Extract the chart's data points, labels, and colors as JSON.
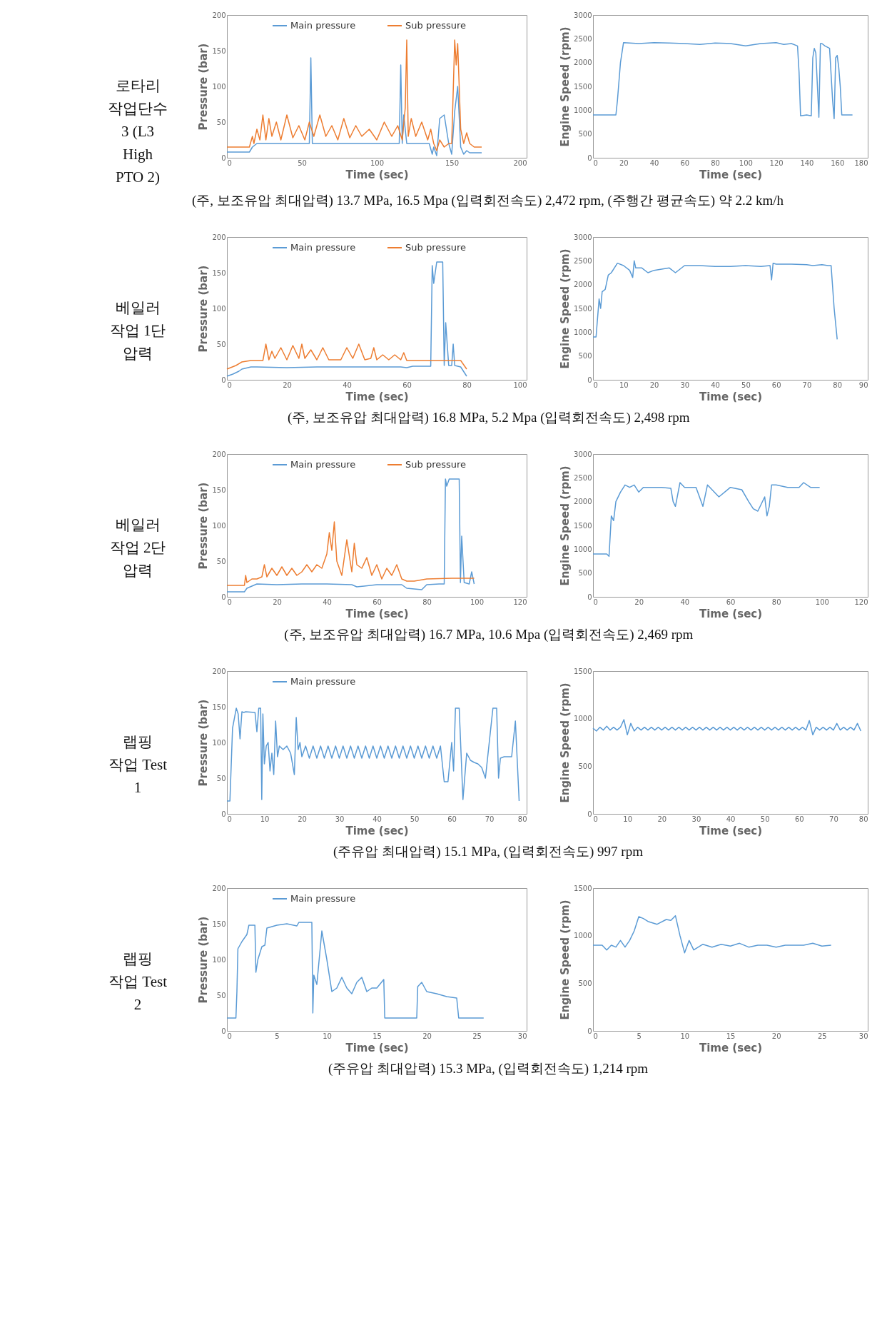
{
  "chart_data": [
    {
      "type": "line",
      "xlabel": "Time (sec)",
      "ylabel": "Pressure (bar)",
      "xlim": [
        0,
        200
      ],
      "xticks": [
        0,
        50,
        100,
        150,
        200
      ],
      "ylim": [
        0,
        200
      ],
      "yticks": [
        0,
        50,
        100,
        150,
        200
      ],
      "legend": "top",
      "annotations": [
        "로타리\n작업단수\n3 (L3\nHigh\nPTO 2)"
      ],
      "series": [
        {
          "name": "Main pressure",
          "color": "#5b9bd5",
          "x": [
            0,
            15,
            17,
            20,
            40,
            55,
            56,
            57,
            60,
            80,
            100,
            115,
            116,
            117,
            118,
            120,
            135,
            137,
            138,
            140,
            142,
            145,
            148,
            150,
            152,
            154,
            156,
            158,
            160,
            162,
            170
          ],
          "values": [
            8,
            8,
            15,
            20,
            20,
            20,
            140,
            20,
            20,
            20,
            20,
            20,
            130,
            20,
            60,
            20,
            20,
            5,
            15,
            3,
            55,
            60,
            20,
            5,
            65,
            100,
            15,
            5,
            10,
            7,
            7
          ]
        },
        {
          "name": "Sub pressure",
          "color": "#ed7d31",
          "x": [
            0,
            15,
            17,
            18,
            20,
            22,
            24,
            26,
            28,
            30,
            33,
            36,
            40,
            44,
            48,
            52,
            55,
            58,
            62,
            66,
            70,
            74,
            78,
            82,
            86,
            90,
            95,
            100,
            105,
            110,
            114,
            117,
            119,
            120,
            121,
            123,
            126,
            130,
            134,
            136,
            138,
            140,
            142,
            145,
            148,
            150,
            152,
            153,
            154,
            155,
            156,
            158,
            160,
            162,
            165,
            170
          ],
          "values": [
            15,
            15,
            30,
            20,
            40,
            25,
            60,
            25,
            55,
            30,
            50,
            25,
            60,
            28,
            45,
            25,
            50,
            30,
            60,
            30,
            45,
            25,
            55,
            28,
            45,
            30,
            40,
            25,
            50,
            30,
            45,
            25,
            70,
            165,
            30,
            55,
            30,
            50,
            25,
            40,
            20,
            10,
            25,
            15,
            20,
            20,
            165,
            130,
            160,
            100,
            40,
            20,
            35,
            20,
            15,
            15
          ]
        }
      ]
    },
    {
      "type": "line",
      "xlabel": "Time (sec)",
      "ylabel": "Engine Speed (rpm)",
      "xlim": [
        0,
        180
      ],
      "xticks": [
        0,
        20,
        40,
        60,
        80,
        100,
        120,
        140,
        160,
        180
      ],
      "ylim": [
        0,
        3000
      ],
      "yticks": [
        0,
        500,
        1000,
        1500,
        2000,
        2500,
        3000
      ],
      "annotations": [
        "(주, 보조유압 최대압력) 13.7 MPa, 16.5 Mpa (입력회전속도) 2,472 rpm, (주행간 평균속도) 약 2.2 km/h"
      ],
      "series": [
        {
          "color": "#5b9bd5",
          "x": [
            0,
            15,
            16,
            18,
            20,
            30,
            40,
            50,
            60,
            70,
            80,
            90,
            100,
            110,
            120,
            125,
            130,
            134,
            135,
            136,
            140,
            143,
            144,
            145,
            146,
            148,
            149,
            150,
            152,
            155,
            157,
            158,
            159,
            160,
            161,
            162,
            163,
            165,
            170
          ],
          "values": [
            900,
            900,
            1200,
            2000,
            2420,
            2400,
            2420,
            2410,
            2400,
            2380,
            2410,
            2400,
            2350,
            2400,
            2420,
            2380,
            2400,
            2350,
            1800,
            880,
            900,
            880,
            2100,
            2300,
            2200,
            850,
            2400,
            2400,
            2350,
            2300,
            1200,
            820,
            2100,
            2150,
            1900,
            1500,
            900,
            900,
            900
          ]
        }
      ]
    },
    {
      "type": "line",
      "xlabel": "Time (sec)",
      "ylabel": "Pressure (bar)",
      "xlim": [
        0,
        100
      ],
      "xticks": [
        0,
        20,
        40,
        60,
        80,
        100
      ],
      "ylim": [
        0,
        200
      ],
      "yticks": [
        0,
        50,
        100,
        150,
        200
      ],
      "legend": "top",
      "annotations": [
        "베일러\n작업 1단\n압력"
      ],
      "series": [
        {
          "name": "Main pressure",
          "color": "#5b9bd5",
          "x": [
            0,
            2,
            3,
            4,
            5,
            8,
            10,
            20,
            30,
            40,
            50,
            58,
            60,
            62,
            68,
            68.5,
            69,
            70,
            72,
            72.5,
            73,
            74,
            75,
            75.5,
            76,
            78,
            80
          ],
          "values": [
            5,
            8,
            10,
            12,
            15,
            18,
            18,
            17,
            18,
            18,
            18,
            18,
            17,
            19,
            19,
            160,
            135,
            165,
            165,
            20,
            80,
            20,
            20,
            50,
            20,
            18,
            5
          ]
        },
        {
          "name": "Sub pressure",
          "color": "#ed7d31",
          "x": [
            0,
            3,
            5,
            8,
            10,
            12,
            13,
            14,
            15,
            16,
            18,
            20,
            22,
            24,
            25,
            26,
            28,
            30,
            32,
            34,
            36,
            38,
            40,
            42,
            44,
            46,
            48,
            49,
            50,
            52,
            54,
            56,
            58,
            59,
            60,
            65,
            70,
            78,
            80
          ],
          "values": [
            15,
            20,
            25,
            27,
            27,
            27,
            50,
            28,
            40,
            30,
            45,
            28,
            48,
            30,
            50,
            30,
            42,
            28,
            45,
            28,
            28,
            28,
            45,
            30,
            50,
            28,
            30,
            45,
            28,
            35,
            28,
            35,
            28,
            38,
            27,
            27,
            27,
            27,
            15
          ]
        }
      ]
    },
    {
      "type": "line",
      "xlabel": "Time (sec)",
      "ylabel": "Engine Speed (rpm)",
      "xlim": [
        0,
        90
      ],
      "xticks": [
        0,
        10,
        20,
        30,
        40,
        50,
        60,
        70,
        80,
        90
      ],
      "ylim": [
        0,
        3000
      ],
      "yticks": [
        0,
        500,
        1000,
        1500,
        2000,
        2500,
        3000
      ],
      "annotations": [
        "(주, 보조유압 최대압력) 16.8 MPa, 5.2 Mpa (입력회전속도) 2,498 rpm"
      ],
      "series": [
        {
          "color": "#5b9bd5",
          "x": [
            0,
            1,
            2,
            2.5,
            3,
            4,
            5,
            6,
            8,
            10,
            12,
            13,
            13.5,
            14,
            16,
            18,
            20,
            25,
            27,
            30,
            35,
            40,
            45,
            50,
            55,
            58,
            58.5,
            59,
            60,
            65,
            70,
            72,
            75,
            77,
            78,
            79,
            80
          ],
          "values": [
            900,
            900,
            1700,
            1500,
            1850,
            1900,
            2200,
            2250,
            2450,
            2400,
            2300,
            2150,
            2500,
            2350,
            2350,
            2250,
            2300,
            2350,
            2250,
            2400,
            2400,
            2380,
            2380,
            2400,
            2380,
            2400,
            2100,
            2450,
            2430,
            2430,
            2420,
            2400,
            2420,
            2400,
            2400,
            1500,
            850
          ]
        }
      ]
    },
    {
      "type": "line",
      "xlabel": "Time (sec)",
      "ylabel": "Pressure (bar)",
      "xlim": [
        0,
        120
      ],
      "xticks": [
        0,
        20,
        40,
        60,
        80,
        100,
        120
      ],
      "ylim": [
        0,
        200
      ],
      "yticks": [
        0,
        50,
        100,
        150,
        200
      ],
      "legend": "top",
      "annotations": [
        "베일러\n작업 2단\n압력"
      ],
      "series": [
        {
          "name": "Main pressure",
          "color": "#5b9bd5",
          "x": [
            0,
            7,
            8,
            10,
            12,
            20,
            30,
            40,
            50,
            52,
            60,
            70,
            72,
            78,
            80,
            85,
            87,
            87.5,
            88,
            89,
            90,
            93,
            93.5,
            94,
            95,
            97,
            98,
            99
          ],
          "values": [
            7,
            7,
            12,
            15,
            18,
            17,
            18,
            18,
            17,
            14,
            17,
            17,
            12,
            10,
            17,
            18,
            18,
            165,
            155,
            165,
            165,
            165,
            20,
            85,
            20,
            18,
            35,
            18
          ]
        },
        {
          "name": "Sub pressure",
          "color": "#ed7d31",
          "x": [
            0,
            7,
            7.5,
            8,
            10,
            12,
            14,
            15,
            16,
            18,
            20,
            22,
            24,
            26,
            28,
            30,
            32,
            34,
            36,
            38,
            40,
            41,
            42,
            43,
            44,
            45,
            46,
            48,
            50,
            51,
            52,
            54,
            56,
            58,
            60,
            62,
            64,
            66,
            68,
            70,
            72,
            75,
            80,
            90,
            99
          ],
          "values": [
            16,
            16,
            30,
            20,
            25,
            25,
            28,
            45,
            28,
            40,
            30,
            42,
            30,
            40,
            30,
            35,
            45,
            35,
            45,
            40,
            60,
            90,
            65,
            105,
            50,
            40,
            30,
            80,
            35,
            75,
            45,
            40,
            55,
            30,
            45,
            25,
            40,
            30,
            45,
            25,
            22,
            22,
            25,
            26,
            26
          ]
        }
      ]
    },
    {
      "type": "line",
      "xlabel": "Time (sec)",
      "ylabel": "Engine Speed (rpm)",
      "xlim": [
        0,
        120
      ],
      "xticks": [
        0,
        20,
        40,
        60,
        80,
        100,
        120
      ],
      "ylim": [
        0,
        3000
      ],
      "yticks": [
        0,
        500,
        1000,
        1500,
        2000,
        2500,
        3000
      ],
      "annotations": [
        "(주, 보조유압 최대압력) 16.7 MPa, 10.6 Mpa (입력회전속도) 2,469 rpm"
      ],
      "series": [
        {
          "color": "#5b9bd5",
          "x": [
            0,
            6,
            7,
            8,
            9,
            10,
            12,
            14,
            16,
            18,
            20,
            22,
            25,
            30,
            34,
            35,
            36,
            38,
            40,
            45,
            48,
            50,
            55,
            60,
            65,
            68,
            70,
            72,
            75,
            76,
            77,
            78,
            80,
            85,
            90,
            92,
            95,
            99
          ],
          "values": [
            900,
            900,
            850,
            1700,
            1600,
            2000,
            2200,
            2350,
            2300,
            2350,
            2200,
            2300,
            2300,
            2300,
            2280,
            2000,
            1900,
            2400,
            2300,
            2300,
            1900,
            2350,
            2100,
            2300,
            2250,
            2000,
            1850,
            1800,
            2100,
            1700,
            1900,
            2350,
            2350,
            2300,
            2300,
            2400,
            2300,
            2300
          ]
        }
      ]
    },
    {
      "type": "line",
      "xlabel": "Time (sec)",
      "ylabel": "Pressure (bar)",
      "xlim": [
        0,
        80
      ],
      "xticks": [
        0,
        10,
        20,
        30,
        40,
        50,
        60,
        70,
        80
      ],
      "ylim": [
        0,
        200
      ],
      "yticks": [
        0,
        50,
        100,
        150,
        200
      ],
      "legend": "top",
      "annotations": [
        "랩핑\n작업 Test\n1"
      ],
      "series": [
        {
          "name": "Main pressure",
          "color": "#5b9bd5",
          "x": [
            0,
            0.8,
            1.5,
            2.5,
            3,
            3.5,
            4,
            4.5,
            5,
            7.5,
            8,
            8.5,
            9,
            9.3,
            9.6,
            10,
            10.5,
            11,
            11.5,
            12,
            12.5,
            13,
            13.5,
            14,
            15,
            16,
            17,
            18,
            18.5,
            19,
            19.5,
            20,
            21,
            22,
            23,
            24,
            25,
            26,
            27,
            28,
            29,
            30,
            31,
            32,
            33,
            34,
            35,
            36,
            37,
            38,
            39,
            40,
            41,
            42,
            43,
            44,
            45,
            46,
            47,
            48,
            49,
            50,
            51,
            52,
            53,
            54,
            55,
            56,
            57,
            58,
            59,
            60,
            60.5,
            61,
            62,
            63,
            64,
            65,
            66,
            67,
            68,
            69,
            71,
            72,
            72.5,
            73,
            74,
            76,
            77,
            78
          ],
          "values": [
            18,
            18,
            120,
            148,
            140,
            105,
            143,
            142,
            143,
            142,
            115,
            148,
            148,
            20,
            140,
            70,
            95,
            100,
            60,
            85,
            55,
            130,
            80,
            95,
            90,
            95,
            85,
            55,
            135,
            90,
            100,
            80,
            95,
            78,
            95,
            78,
            95,
            78,
            95,
            78,
            95,
            78,
            95,
            78,
            95,
            78,
            95,
            78,
            95,
            78,
            95,
            78,
            95,
            78,
            95,
            78,
            95,
            78,
            95,
            78,
            95,
            78,
            95,
            78,
            95,
            78,
            95,
            78,
            95,
            45,
            45,
            100,
            60,
            148,
            148,
            20,
            85,
            75,
            72,
            70,
            65,
            50,
            148,
            148,
            50,
            78,
            80,
            80,
            130,
            18
          ]
        }
      ]
    },
    {
      "type": "line",
      "xlabel": "Time (sec)",
      "ylabel": "Engine Speed (rpm)",
      "xlim": [
        0,
        80
      ],
      "xticks": [
        0,
        10,
        20,
        30,
        40,
        50,
        60,
        70,
        80
      ],
      "ylim": [
        0,
        1500
      ],
      "yticks": [
        0,
        500,
        1000,
        1500
      ],
      "annotations": [
        "(주유압 최대압력) 15.1 MPa, (입력회전속도) 997 rpm"
      ],
      "series": [
        {
          "color": "#5b9bd5",
          "x": [
            0,
            1,
            2,
            3,
            4,
            5,
            6,
            7,
            8,
            9,
            10,
            11,
            12,
            13,
            14,
            15,
            16,
            17,
            18,
            19,
            20,
            21,
            22,
            23,
            24,
            25,
            26,
            27,
            28,
            29,
            30,
            31,
            32,
            33,
            34,
            35,
            36,
            37,
            38,
            39,
            40,
            41,
            42,
            43,
            44,
            45,
            46,
            47,
            48,
            49,
            50,
            51,
            52,
            53,
            54,
            55,
            56,
            57,
            58,
            59,
            60,
            61,
            62,
            63,
            64,
            65,
            66,
            67,
            68,
            69,
            70,
            71,
            72,
            73,
            74,
            75,
            76,
            77,
            78
          ],
          "values": [
            900,
            870,
            910,
            880,
            920,
            880,
            910,
            880,
            910,
            990,
            830,
            950,
            870,
            910,
            880,
            910,
            880,
            910,
            880,
            910,
            880,
            910,
            880,
            910,
            880,
            910,
            880,
            910,
            880,
            910,
            880,
            910,
            880,
            910,
            880,
            910,
            880,
            910,
            880,
            910,
            880,
            910,
            880,
            910,
            880,
            910,
            880,
            910,
            880,
            910,
            880,
            910,
            880,
            910,
            880,
            910,
            880,
            910,
            880,
            910,
            880,
            910,
            880,
            980,
            830,
            910,
            880,
            910,
            880,
            910,
            880,
            950,
            880,
            910,
            880,
            910,
            880,
            950,
            870
          ]
        }
      ]
    },
    {
      "type": "line",
      "xlabel": "Time (sec)",
      "ylabel": "Pressure (bar)",
      "xlim": [
        0,
        30
      ],
      "xticks": [
        0,
        5,
        10,
        15,
        20,
        25,
        30
      ],
      "ylim": [
        0,
        200
      ],
      "yticks": [
        0,
        50,
        100,
        150,
        200
      ],
      "legend": "top",
      "annotations": [
        "랩핑\n작업 Test\n2"
      ],
      "series": [
        {
          "name": "Main pressure",
          "color": "#5b9bd5",
          "x": [
            0,
            0.9,
            1,
            1.1,
            1.5,
            2,
            2.2,
            2.8,
            2.9,
            3.1,
            3.5,
            3.8,
            4,
            5,
            6,
            7,
            7.2,
            8.5,
            8.6,
            8.7,
            9,
            9.5,
            10,
            10.5,
            11,
            11.5,
            12,
            12.5,
            13,
            13.5,
            14,
            14.5,
            15,
            15.7,
            15.8,
            17,
            19,
            19.1,
            19.5,
            20,
            21,
            22,
            23,
            23.2,
            24,
            25,
            25.7
          ],
          "values": [
            18,
            18,
            55,
            115,
            125,
            135,
            148,
            148,
            82,
            100,
            118,
            120,
            144,
            148,
            150,
            147,
            152,
            152,
            25,
            78,
            65,
            140,
            100,
            55,
            60,
            75,
            60,
            52,
            68,
            75,
            55,
            60,
            60,
            72,
            18,
            18,
            18,
            62,
            68,
            55,
            52,
            48,
            46,
            18,
            18,
            18,
            18
          ]
        }
      ]
    },
    {
      "type": "line",
      "xlabel": "Time (sec)",
      "ylabel": "Engine Speed (rpm)",
      "xlim": [
        0,
        30
      ],
      "xticks": [
        0,
        5,
        10,
        15,
        20,
        25,
        30
      ],
      "ylim": [
        0,
        1500
      ],
      "yticks": [
        0,
        500,
        1000,
        1500
      ],
      "annotations": [
        "(주유압 최대압력) 15.3 MPa, (입력회전속도) 1,214 rpm"
      ],
      "series": [
        {
          "color": "#5b9bd5",
          "x": [
            0,
            1,
            1.5,
            2,
            2.5,
            3,
            3.5,
            4,
            4.5,
            5,
            5.5,
            6,
            7,
            8,
            8.5,
            9,
            9.5,
            10,
            10.5,
            11,
            12,
            13,
            14,
            15,
            16,
            17,
            18,
            19,
            20,
            21,
            22,
            23,
            24,
            25,
            26
          ],
          "values": [
            900,
            900,
            850,
            900,
            880,
            950,
            880,
            950,
            1050,
            1200,
            1180,
            1150,
            1120,
            1170,
            1160,
            1210,
            1000,
            820,
            950,
            850,
            910,
            880,
            910,
            890,
            920,
            880,
            900,
            900,
            880,
            900,
            900,
            900,
            920,
            890,
            900
          ]
        }
      ]
    }
  ]
}
